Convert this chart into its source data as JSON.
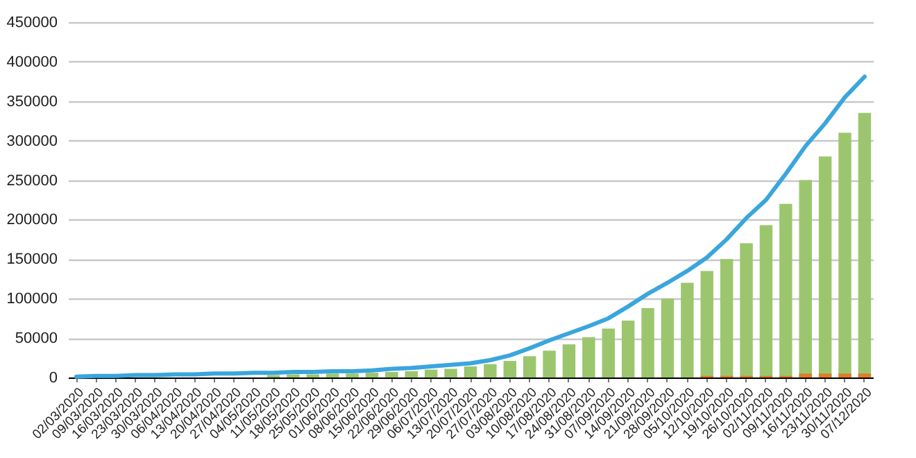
{
  "chart_data": {
    "type": "bar",
    "categories": [
      "02/03/2020",
      "09/03/2020",
      "16/03/2020",
      "23/03/2020",
      "30/03/2020",
      "06/04/2020",
      "13/04/2020",
      "20/04/2020",
      "27/04/2020",
      "04/05/2020",
      "11/05/2020",
      "18/05/2020",
      "25/05/2020",
      "01/06/2020",
      "08/06/2020",
      "15/06/2020",
      "22/06/2020",
      "29/06/2020",
      "06/07/2020",
      "13/07/2020",
      "20/07/2020",
      "27/07/2020",
      "03/08/2020",
      "10/08/2020",
      "17/08/2020",
      "24/08/2020",
      "31/08/2020",
      "07/09/2020",
      "14/09/2020",
      "21/09/2020",
      "28/09/2020",
      "05/10/2020",
      "12/10/2020",
      "19/10/2020",
      "26/10/2020",
      "02/11/2020",
      "09/11/2020",
      "16/11/2020",
      "23/11/2020",
      "30/11/2020",
      "07/12/2020"
    ],
    "series": [
      {
        "color": "#9cc66e",
        "values": [
          null,
          null,
          null,
          null,
          null,
          null,
          null,
          null,
          null,
          null,
          3000,
          4000,
          4000,
          5000,
          5000,
          6000,
          7000,
          8000,
          10000,
          11000,
          14000,
          17000,
          21000,
          27000,
          34000,
          42000,
          51000,
          62000,
          72000,
          88000,
          100000,
          120000,
          135000,
          150000,
          170000,
          193000,
          220000,
          250000,
          280000,
          310000,
          335000
        ]
      },
      {
        "color": "#e07b2a",
        "values": [
          null,
          null,
          null,
          null,
          null,
          null,
          null,
          null,
          null,
          null,
          null,
          null,
          null,
          null,
          null,
          null,
          null,
          null,
          null,
          null,
          null,
          null,
          null,
          null,
          null,
          null,
          null,
          null,
          null,
          null,
          null,
          null,
          2000,
          2000,
          2000,
          2000,
          2000,
          5000,
          5000,
          5000,
          5000
        ]
      },
      {
        "type": "line",
        "color": "#3aa6dd",
        "values": [
          1000,
          2000,
          2000,
          3000,
          3000,
          4000,
          4000,
          5000,
          5000,
          6000,
          6000,
          7000,
          7000,
          8000,
          8000,
          9000,
          11000,
          12000,
          14000,
          16000,
          18000,
          22000,
          28000,
          37000,
          47000,
          56000,
          65000,
          75000,
          90000,
          106000,
          120000,
          135000,
          152000,
          175000,
          202000,
          225000,
          258000,
          293000,
          322000,
          355000,
          381000
        ]
      }
    ],
    "ylim": [
      0,
      450000
    ],
    "yticks": [
      0,
      50000,
      100000,
      150000,
      200000,
      250000,
      300000,
      350000,
      400000,
      450000
    ],
    "grid": "y",
    "line_style": "solid"
  }
}
